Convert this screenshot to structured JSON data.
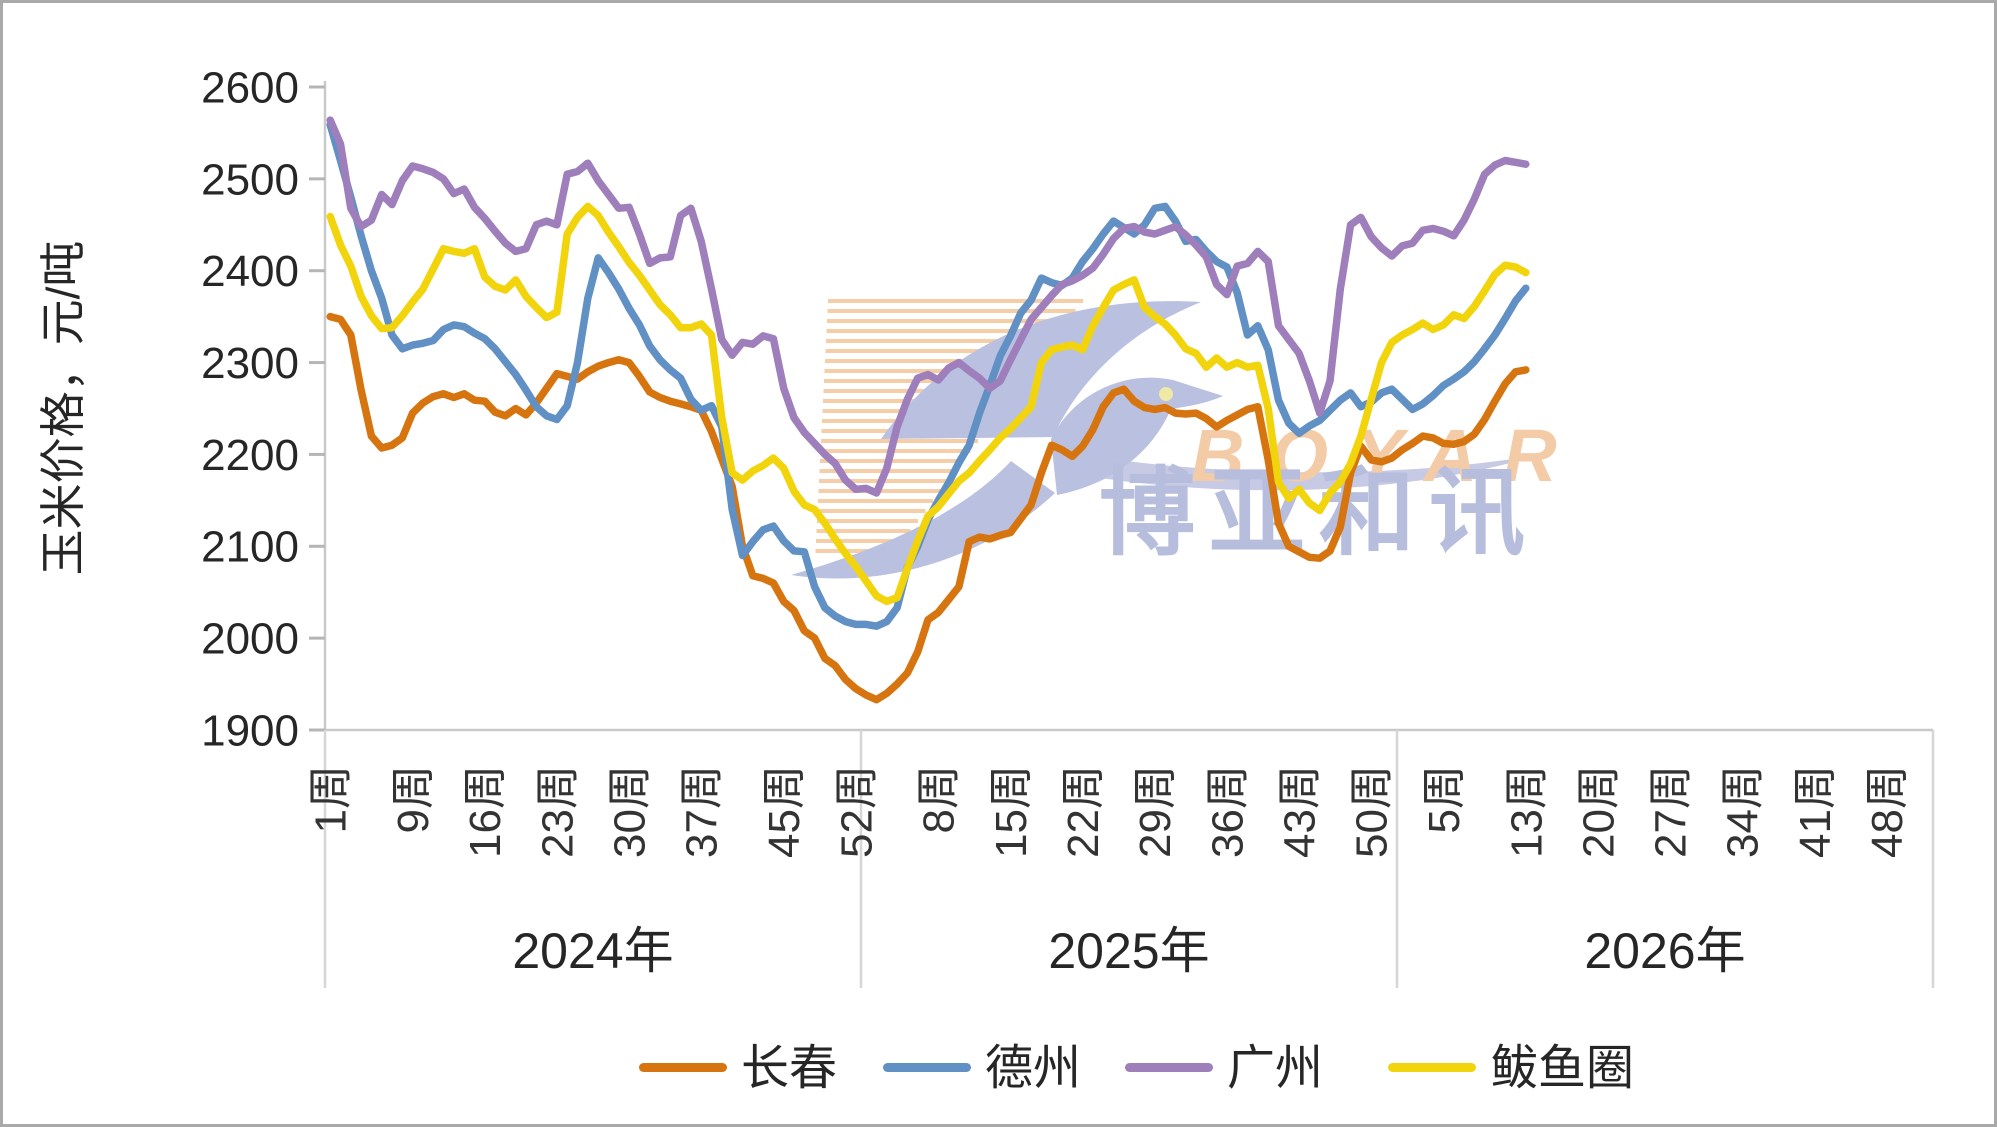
{
  "frame": {
    "background": "#ffffff",
    "border_color": "#a9a9a9"
  },
  "watermark": {
    "en": "BOYAR",
    "cn": "博亚和讯"
  },
  "chart_data": {
    "type": "line",
    "title": "",
    "ylabel": "玉米价格，元/吨",
    "ylim": [
      1900,
      2600
    ],
    "ytick_step": 100,
    "ytick_labels": [
      "2600",
      "2500",
      "2400",
      "2300",
      "2200",
      "2100",
      "2000",
      "1900"
    ],
    "grid": false,
    "legend_position": "bottom",
    "x_unit": "week",
    "x_note": "weekly prices from 2024 week 1 through 2026 week 13; axis extends to 2026 week 52",
    "x_structure": {
      "years": [
        {
          "label": "2024年",
          "weeks": 52,
          "tick_weeks": [
            1,
            9,
            16,
            23,
            30,
            37,
            45,
            52
          ],
          "tick_labels": [
            "1周",
            "9周",
            "16周",
            "23周",
            "30周",
            "37周",
            "45周",
            "52周"
          ]
        },
        {
          "label": "2025年",
          "weeks": 52,
          "tick_weeks": [
            8,
            15,
            22,
            29,
            36,
            43,
            50
          ],
          "tick_labels": [
            "8周",
            "15周",
            "22周",
            "29周",
            "36周",
            "43周",
            "50周"
          ]
        },
        {
          "label": "2026年",
          "weeks": 52,
          "tick_weeks": [
            5,
            13,
            20,
            27,
            34,
            41,
            48
          ],
          "tick_labels": [
            "5周",
            "13周",
            "20周",
            "27周",
            "34周",
            "41周",
            "48周"
          ]
        }
      ]
    },
    "series": [
      {
        "name": "长春",
        "color": "#D6750F",
        "values": [
          2350,
          2347,
          2330,
          2270,
          2220,
          2207,
          2210,
          2218,
          2245,
          2256,
          2263,
          2266,
          2262,
          2266,
          2259,
          2258,
          2246,
          2242,
          2250,
          2243,
          2256,
          2272,
          2288,
          2285,
          2282,
          2290,
          2296,
          2300,
          2303,
          2300,
          2285,
          2268,
          2262,
          2258,
          2255,
          2252,
          2248,
          2225,
          2195,
          2165,
          2100,
          2068,
          2065,
          2060,
          2040,
          2030,
          2008,
          2000,
          1978,
          1970,
          1955,
          1945,
          1938,
          1933,
          1940,
          1950,
          1962,
          1985,
          2020,
          2028,
          2042,
          2056,
          2105,
          2110,
          2108,
          2112,
          2115,
          2130,
          2145,
          2180,
          2210,
          2205,
          2198,
          2209,
          2227,
          2252,
          2267,
          2271,
          2258,
          2251,
          2249,
          2251,
          2245,
          2244,
          2245,
          2239,
          2230,
          2237,
          2243,
          2249,
          2252,
          2194,
          2125,
          2100,
          2094,
          2088,
          2087,
          2095,
          2121,
          2180,
          2209,
          2194,
          2192,
          2196,
          2205,
          2212,
          2220,
          2218,
          2212,
          2211,
          2214,
          2222,
          2238,
          2258,
          2277,
          2290,
          2292
        ]
      },
      {
        "name": "德州",
        "color": "#6090C4",
        "values": [
          2559,
          2520,
          2480,
          2438,
          2400,
          2370,
          2330,
          2315,
          2319,
          2321,
          2324,
          2336,
          2341,
          2339,
          2332,
          2326,
          2315,
          2301,
          2287,
          2270,
          2252,
          2242,
          2238,
          2253,
          2300,
          2370,
          2414,
          2398,
          2380,
          2359,
          2341,
          2318,
          2303,
          2292,
          2283,
          2260,
          2248,
          2253,
          2230,
          2140,
          2090,
          2105,
          2118,
          2122,
          2106,
          2095,
          2094,
          2056,
          2033,
          2024,
          2018,
          2015,
          2015,
          2013,
          2018,
          2033,
          2077,
          2100,
          2129,
          2150,
          2169,
          2191,
          2210,
          2245,
          2275,
          2307,
          2329,
          2354,
          2368,
          2392,
          2387,
          2384,
          2392,
          2410,
          2424,
          2440,
          2454,
          2447,
          2440,
          2450,
          2468,
          2470,
          2454,
          2432,
          2434,
          2421,
          2410,
          2404,
          2376,
          2330,
          2340,
          2314,
          2259,
          2234,
          2223,
          2231,
          2237,
          2248,
          2259,
          2267,
          2252,
          2257,
          2267,
          2271,
          2260,
          2249,
          2255,
          2264,
          2275,
          2282,
          2290,
          2301,
          2315,
          2330,
          2348,
          2367,
          2381
        ]
      },
      {
        "name": "广州",
        "color": "#9E7FBB",
        "values": [
          2564,
          2538,
          2468,
          2448,
          2455,
          2483,
          2472,
          2498,
          2514,
          2511,
          2507,
          2500,
          2484,
          2489,
          2469,
          2457,
          2443,
          2430,
          2421,
          2424,
          2450,
          2454,
          2450,
          2505,
          2508,
          2517,
          2498,
          2483,
          2468,
          2469,
          2440,
          2408,
          2414,
          2415,
          2460,
          2468,
          2432,
          2380,
          2325,
          2308,
          2322,
          2320,
          2329,
          2326,
          2272,
          2240,
          2224,
          2212,
          2200,
          2190,
          2172,
          2162,
          2163,
          2158,
          2185,
          2230,
          2260,
          2283,
          2287,
          2281,
          2294,
          2300,
          2291,
          2283,
          2272,
          2280,
          2303,
          2325,
          2347,
          2360,
          2373,
          2385,
          2389,
          2395,
          2403,
          2418,
          2435,
          2446,
          2448,
          2442,
          2440,
          2444,
          2448,
          2439,
          2428,
          2415,
          2385,
          2374,
          2405,
          2408,
          2421,
          2410,
          2340,
          2325,
          2310,
          2280,
          2245,
          2280,
          2380,
          2450,
          2458,
          2437,
          2425,
          2416,
          2427,
          2430,
          2444,
          2446,
          2443,
          2438,
          2455,
          2478,
          2505,
          2515,
          2520,
          2518,
          2516
        ]
      },
      {
        "name": "鲅鱼圈",
        "color": "#F2D40C",
        "values": [
          2459,
          2428,
          2405,
          2372,
          2351,
          2337,
          2338,
          2351,
          2366,
          2380,
          2402,
          2424,
          2421,
          2419,
          2424,
          2393,
          2383,
          2379,
          2390,
          2372,
          2360,
          2349,
          2355,
          2440,
          2458,
          2470,
          2460,
          2442,
          2426,
          2409,
          2395,
          2379,
          2363,
          2352,
          2338,
          2338,
          2342,
          2330,
          2240,
          2180,
          2172,
          2182,
          2188,
          2196,
          2185,
          2160,
          2145,
          2140,
          2125,
          2108,
          2092,
          2078,
          2062,
          2046,
          2040,
          2044,
          2076,
          2106,
          2133,
          2143,
          2157,
          2171,
          2180,
          2193,
          2205,
          2218,
          2228,
          2240,
          2252,
          2300,
          2314,
          2317,
          2319,
          2314,
          2340,
          2360,
          2379,
          2385,
          2390,
          2360,
          2350,
          2342,
          2330,
          2315,
          2310,
          2295,
          2305,
          2295,
          2300,
          2295,
          2297,
          2250,
          2170,
          2152,
          2162,
          2147,
          2139,
          2158,
          2170,
          2190,
          2220,
          2260,
          2300,
          2322,
          2330,
          2336,
          2343,
          2336,
          2341,
          2352,
          2348,
          2361,
          2378,
          2396,
          2406,
          2404,
          2398
        ]
      }
    ]
  }
}
